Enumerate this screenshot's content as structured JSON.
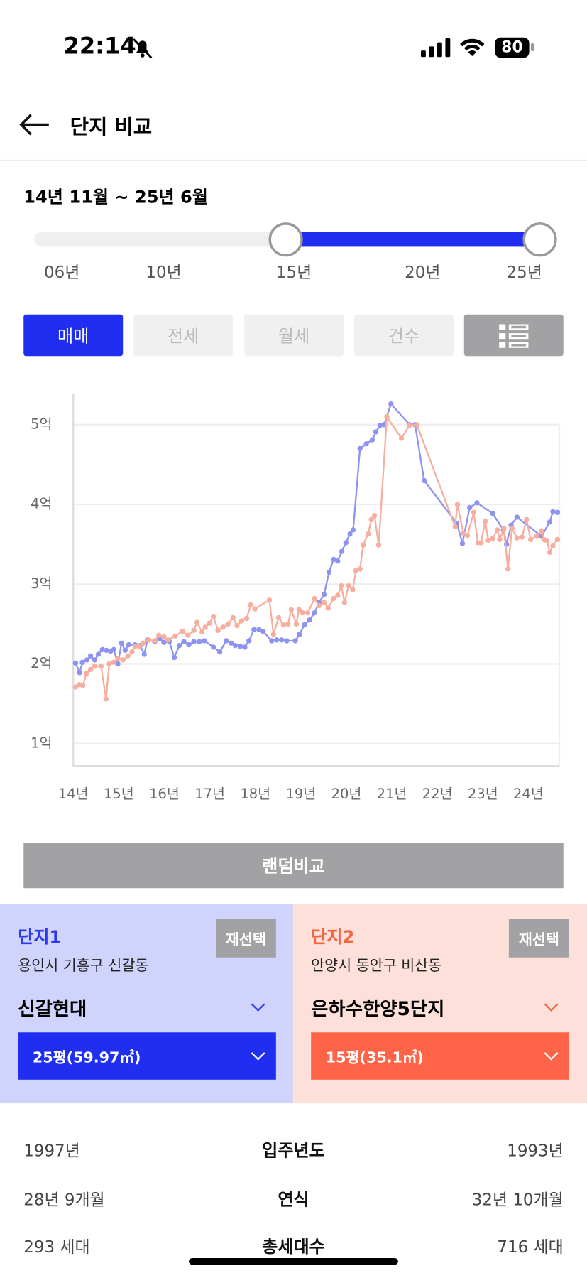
{
  "status": {
    "time": "22:14",
    "battery": "80"
  },
  "header": {
    "title": "단지 비교"
  },
  "range": {
    "text": "14년 11월 ~ 25년 6월",
    "labels": [
      "06년",
      "10년",
      "15년",
      "20년",
      "25년"
    ]
  },
  "tabs": [
    "매매",
    "전세",
    "월세",
    "건수"
  ],
  "chart_data": {
    "type": "line",
    "ylim": [
      0.72,
      5.39
    ],
    "yticks": [
      {
        "value": 1,
        "label": "1억"
      },
      {
        "value": 2,
        "label": "2억"
      },
      {
        "value": 3,
        "label": "3억"
      },
      {
        "value": 4,
        "label": "4억"
      },
      {
        "value": 5,
        "label": "5억"
      }
    ],
    "xlim": [
      14,
      24.68
    ],
    "xticks": [
      {
        "value": 14,
        "label": "14년"
      },
      {
        "value": 15,
        "label": "15년"
      },
      {
        "value": 16,
        "label": "16년"
      },
      {
        "value": 17,
        "label": "17년"
      },
      {
        "value": 18,
        "label": "18년"
      },
      {
        "value": 19,
        "label": "19년"
      },
      {
        "value": 20,
        "label": "20년"
      },
      {
        "value": 21,
        "label": "21년"
      },
      {
        "value": 22,
        "label": "22년"
      },
      {
        "value": 23,
        "label": "23년"
      },
      {
        "value": 24,
        "label": "24년"
      }
    ],
    "grid": true,
    "series": [
      {
        "color": "#8c93f0",
        "x": [
          14.05,
          14.14,
          14.2,
          14.3,
          14.38,
          14.47,
          14.55,
          14.64,
          14.73,
          14.82,
          14.89,
          14.98,
          15.06,
          15.14,
          15.22,
          15.36,
          15.47,
          15.56,
          15.63,
          15.79,
          15.9,
          15.99,
          16.11,
          16.22,
          16.33,
          16.43,
          16.54,
          16.65,
          16.77,
          16.88,
          17.08,
          17.22,
          17.36,
          17.47,
          17.56,
          17.67,
          17.77,
          17.86,
          17.97,
          18.08,
          18.17,
          18.36,
          18.47,
          18.58,
          18.69,
          18.88,
          18.97,
          19.08,
          19.19,
          19.3,
          19.4,
          19.51,
          19.62,
          19.72,
          19.81,
          19.9,
          19.99,
          20.08,
          20.15,
          20.3,
          20.44,
          20.57,
          20.65,
          20.74,
          20.83,
          20.98,
          21.39,
          21.51,
          21.71,
          22.43,
          22.55,
          22.71,
          22.87,
          23.21,
          23.45,
          23.52,
          23.62,
          23.75,
          24.29,
          24.47,
          24.54,
          24.64
        ],
        "values": [
          2.01,
          1.89,
          2.02,
          2.05,
          2.1,
          2.05,
          2.12,
          2.18,
          2.17,
          2.16,
          2.18,
          2.0,
          2.26,
          2.17,
          2.24,
          2.24,
          2.23,
          2.12,
          2.3,
          2.28,
          2.32,
          2.27,
          2.28,
          2.08,
          2.23,
          2.28,
          2.24,
          2.28,
          2.28,
          2.29,
          2.21,
          2.15,
          2.29,
          2.26,
          2.23,
          2.22,
          2.21,
          2.29,
          2.43,
          2.43,
          2.41,
          2.29,
          2.3,
          2.3,
          2.29,
          2.29,
          2.37,
          2.49,
          2.55,
          2.64,
          2.77,
          2.87,
          3.15,
          3.31,
          3.29,
          3.41,
          3.52,
          3.63,
          3.68,
          4.7,
          4.76,
          4.81,
          4.91,
          4.99,
          5.0,
          5.26,
          5.0,
          5.0,
          4.3,
          3.76,
          3.51,
          3.96,
          4.02,
          3.89,
          3.68,
          3.5,
          3.74,
          3.84,
          3.6,
          3.78,
          3.91,
          3.9
        ]
      },
      {
        "color": "#f7ae9e",
        "x": [
          14.05,
          14.13,
          14.21,
          14.29,
          14.38,
          14.47,
          14.61,
          14.72,
          14.79,
          14.89,
          14.98,
          15.09,
          15.2,
          15.29,
          15.36,
          15.45,
          15.54,
          15.66,
          15.79,
          15.88,
          15.99,
          16.08,
          16.24,
          16.4,
          16.52,
          16.65,
          16.72,
          16.83,
          16.9,
          16.99,
          17.08,
          17.18,
          17.29,
          17.4,
          17.51,
          17.6,
          17.7,
          17.81,
          17.9,
          17.99,
          18.31,
          18.4,
          18.51,
          18.62,
          18.72,
          18.79,
          18.9,
          18.96,
          19.04,
          19.15,
          19.3,
          19.4,
          19.51,
          19.6,
          19.72,
          19.81,
          19.89,
          19.96,
          20.05,
          20.14,
          20.21,
          20.3,
          20.37,
          20.48,
          20.55,
          20.62,
          20.71,
          20.89,
          21.21,
          21.39,
          21.55,
          22.39,
          22.44,
          22.57,
          22.66,
          22.8,
          22.89,
          22.96,
          23.05,
          23.12,
          23.21,
          23.32,
          23.37,
          23.46,
          23.55,
          23.64,
          23.75,
          23.86,
          23.96,
          24.05,
          24.18,
          24.29,
          24.34,
          24.41,
          24.47,
          24.54,
          24.64
        ],
        "values": [
          1.71,
          1.74,
          1.73,
          1.88,
          1.93,
          1.97,
          1.97,
          1.56,
          2.0,
          2.02,
          2.07,
          2.05,
          2.1,
          2.15,
          2.22,
          2.22,
          2.26,
          2.3,
          2.29,
          2.36,
          2.34,
          2.3,
          2.35,
          2.41,
          2.36,
          2.42,
          2.52,
          2.4,
          2.46,
          2.51,
          2.59,
          2.42,
          2.46,
          2.5,
          2.58,
          2.48,
          2.54,
          2.57,
          2.74,
          2.69,
          2.8,
          2.37,
          2.58,
          2.49,
          2.5,
          2.68,
          2.5,
          2.68,
          2.64,
          2.64,
          2.82,
          2.73,
          2.77,
          2.7,
          2.82,
          2.86,
          2.98,
          2.77,
          2.98,
          2.93,
          3.17,
          3.19,
          3.49,
          3.63,
          3.81,
          3.86,
          3.49,
          5.1,
          4.83,
          4.99,
          5.0,
          3.72,
          4.0,
          3.64,
          3.61,
          3.9,
          3.52,
          3.52,
          3.79,
          3.55,
          3.57,
          3.68,
          3.56,
          3.7,
          3.19,
          3.7,
          3.58,
          3.59,
          3.81,
          3.56,
          3.6,
          3.67,
          3.56,
          3.54,
          3.4,
          3.48,
          3.56
        ]
      }
    ]
  },
  "random_button": "랜덤비교",
  "complexes": [
    {
      "label": "단지1",
      "region": "용인시 기흥구 신갈동",
      "reselect": "재선택",
      "name": "신갈현대",
      "size": "25평(59.97㎡)"
    },
    {
      "label": "단지2",
      "region": "안양시 동안구 비산동",
      "reselect": "재선택",
      "name": "은하수한양5단지",
      "size": "15평(35.1㎡)"
    }
  ],
  "comparison": [
    [
      "1997년",
      "입주년도",
      "1993년"
    ],
    [
      "28년 9개월",
      "연식",
      "32년 10개월"
    ],
    [
      "293 세대",
      "총세대수",
      "716 세대"
    ]
  ]
}
